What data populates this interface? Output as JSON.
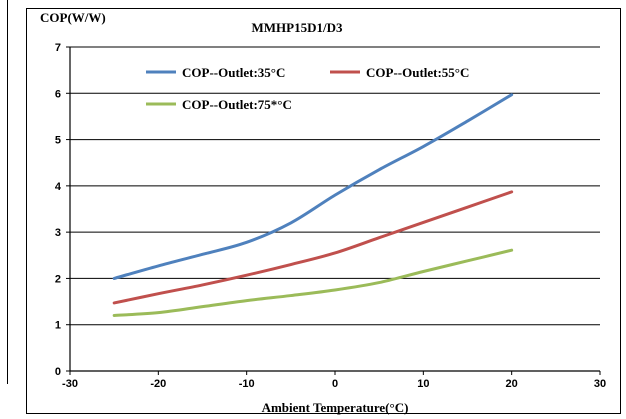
{
  "chart_data": {
    "type": "line",
    "title": "MMHP15D1/D3",
    "ylabel": "COP(W/W)",
    "xlabel": "Ambient Temperature(°C)",
    "xlim": [
      -30,
      30
    ],
    "ylim": [
      0,
      7
    ],
    "x_ticks": [
      "-30",
      "-20",
      "-10",
      "0",
      "10",
      "20",
      "30"
    ],
    "y_ticks": [
      "0",
      "1",
      "2",
      "3",
      "4",
      "5",
      "6",
      "7"
    ],
    "grid": "horizontal",
    "legend_position": "top-left",
    "series": [
      {
        "name": "COP--Outlet:35°C",
        "color": "#4f81bd",
        "x": [
          -25,
          -20,
          -15,
          -10,
          -5,
          0,
          5,
          10,
          15,
          20
        ],
        "y": [
          2.0,
          2.27,
          2.52,
          2.78,
          3.2,
          3.8,
          4.35,
          4.85,
          5.4,
          5.97
        ]
      },
      {
        "name": "COP--Outlet:55°C",
        "color": "#c0504d",
        "x": [
          -25,
          -20,
          -15,
          -10,
          -5,
          0,
          5,
          10,
          15,
          20
        ],
        "y": [
          1.47,
          1.67,
          1.86,
          2.07,
          2.3,
          2.55,
          2.88,
          3.21,
          3.54,
          3.87
        ]
      },
      {
        "name": "COP--Outlet:75*°C",
        "color": "#9bbb59",
        "x": [
          -25,
          -20,
          -15,
          -10,
          -5,
          0,
          5,
          10,
          15,
          20
        ],
        "y": [
          1.2,
          1.26,
          1.39,
          1.52,
          1.63,
          1.75,
          1.91,
          2.15,
          2.38,
          2.61
        ]
      }
    ]
  }
}
